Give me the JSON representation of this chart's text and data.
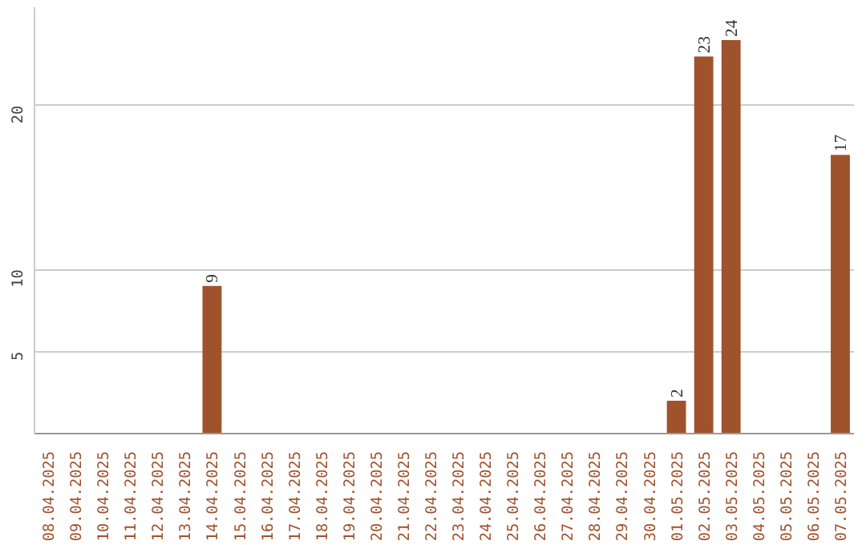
{
  "chart_data": {
    "type": "bar",
    "categories": [
      "08.04.2025",
      "09.04.2025",
      "10.04.2025",
      "11.04.2025",
      "12.04.2025",
      "13.04.2025",
      "14.04.2025",
      "15.04.2025",
      "16.04.2025",
      "17.04.2025",
      "18.04.2025",
      "19.04.2025",
      "20.04.2025",
      "21.04.2025",
      "22.04.2025",
      "23.04.2025",
      "24.04.2025",
      "25.04.2025",
      "26.04.2025",
      "27.04.2025",
      "28.04.2025",
      "29.04.2025",
      "30.04.2025",
      "01.05.2025",
      "02.05.2025",
      "03.05.2025",
      "04.05.2025",
      "05.05.2025",
      "06.05.2025",
      "07.05.2025"
    ],
    "values": [
      0,
      0,
      0,
      0,
      0,
      0,
      9,
      0,
      0,
      0,
      0,
      0,
      0,
      0,
      0,
      0,
      0,
      0,
      0,
      0,
      0,
      0,
      0,
      2,
      23,
      24,
      0,
      0,
      0,
      17
    ],
    "value_labels": [
      null,
      null,
      null,
      null,
      null,
      null,
      "9",
      null,
      null,
      null,
      null,
      null,
      null,
      null,
      null,
      null,
      null,
      null,
      null,
      null,
      null,
      null,
      null,
      "2",
      "23",
      "24",
      null,
      null,
      null,
      "17"
    ],
    "color": "#a0522d",
    "ylim": [
      0,
      26
    ],
    "yticks": [
      5,
      10,
      20
    ],
    "grid": "y"
  }
}
